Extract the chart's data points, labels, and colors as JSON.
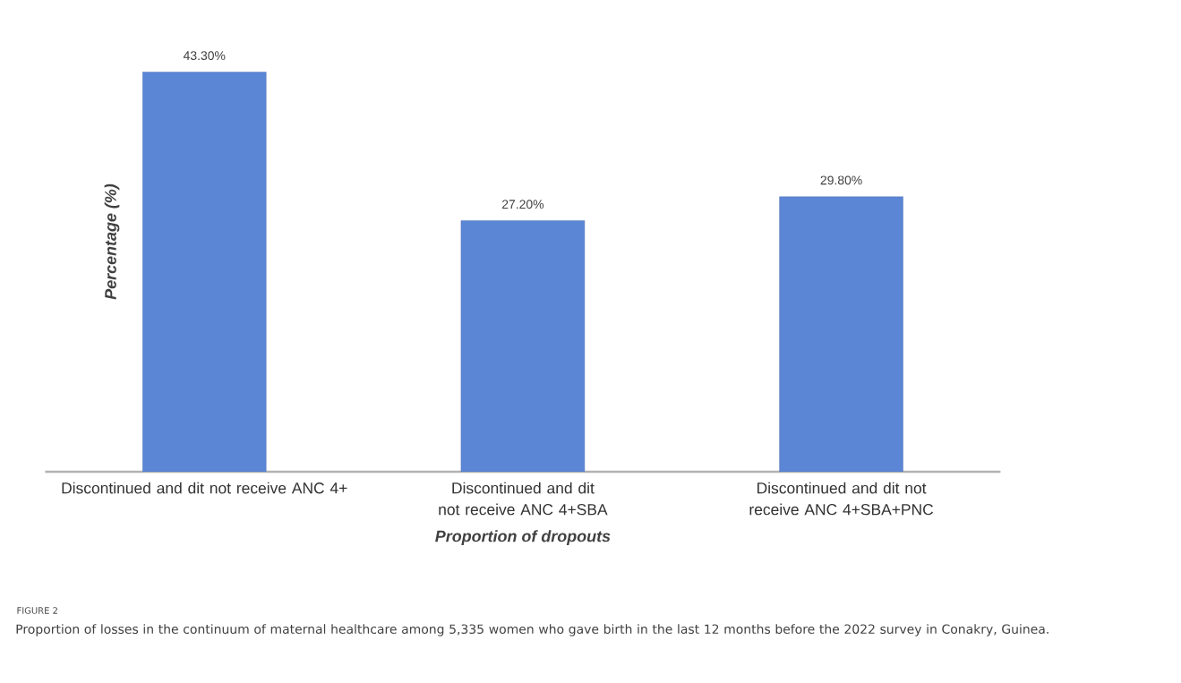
{
  "chart_data": {
    "type": "bar",
    "ylabel": "Percentage (%)",
    "xlabel": "Proportion of dropouts",
    "categories": [
      "Discontinued and dit not receive ANC 4+",
      "Discontinued and dit not receive ANC 4+SBA",
      "Discontinued and dit not receive ANC 4+SBA+PNC"
    ],
    "values": [
      43.3,
      27.2,
      29.8
    ],
    "value_labels": [
      "43.30%",
      "27.20%",
      "29.80%"
    ],
    "color": "#5b86d6",
    "annotations": [
      "FIGURE 2",
      "Proportion of losses in the continuum of maternal healthcare among 5,335 women who gave birth in the last 12 months before the 2022 survey in Conakry, Guinea."
    ]
  }
}
